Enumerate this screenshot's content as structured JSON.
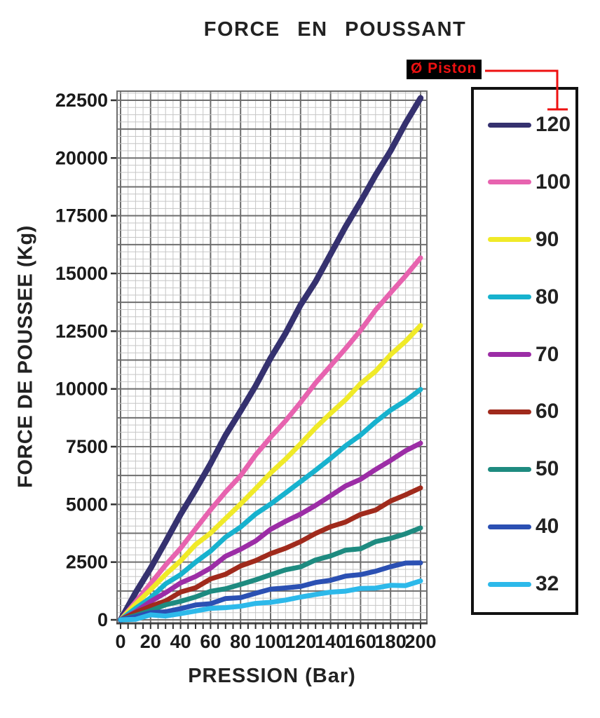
{
  "callout": {
    "label": "Ø Piston",
    "color": "#ee1111",
    "background": "#000000"
  },
  "colors": {
    "text": "#1a1a1a",
    "grid_minor": "#c6c6c6",
    "grid_major": "#6e6e6e",
    "axis": "#444444",
    "tick": "#333333",
    "legend_border": "#111111",
    "callout_red": "#ee1111"
  },
  "chart_data": {
    "type": "line",
    "title": "FORCE EN POUSSANT",
    "xlabel": "PRESSION (Bar)",
    "ylabel": "FORCE DE POUSSEE (Kg)",
    "xlim": [
      0,
      200
    ],
    "ylim": [
      0,
      22500
    ],
    "x_ticks": [
      0,
      20,
      40,
      60,
      80,
      100,
      120,
      140,
      160,
      180,
      200
    ],
    "x_minor_step_bar": 5,
    "y_ticks": [
      0,
      2500,
      5000,
      7500,
      10000,
      12500,
      15000,
      17500,
      20000,
      22500
    ],
    "grid": "on (fine graph paper, major every 4 minor cells)",
    "legend_title": "Ø Piston",
    "legend_position": "right-box",
    "categories": [
      0,
      20,
      40,
      60,
      80,
      100,
      120,
      140,
      160,
      180,
      200
    ],
    "series": [
      {
        "name": "120",
        "color": "#35316f",
        "width": 8.5,
        "values": [
          0,
          2260,
          4520,
          6790,
          9050,
          11310,
          13570,
          15830,
          18100,
          20360,
          22620
        ]
      },
      {
        "name": "100",
        "color": "#e763af",
        "width": 7,
        "values": [
          0,
          1570,
          3140,
          4710,
          6280,
          7850,
          9420,
          11000,
          12570,
          14140,
          15710
        ]
      },
      {
        "name": "90",
        "color": "#f0ea28",
        "width": 7,
        "values": [
          0,
          1270,
          2540,
          3820,
          5090,
          6360,
          7630,
          8910,
          10180,
          11450,
          12720
        ]
      },
      {
        "name": "80",
        "color": "#17b2ce",
        "width": 7,
        "values": [
          0,
          1010,
          2010,
          3020,
          4020,
          5030,
          6030,
          7040,
          8040,
          9050,
          10050
        ]
      },
      {
        "name": "70",
        "color": "#9c2da6",
        "width": 7,
        "values": [
          0,
          770,
          1540,
          2310,
          3080,
          3850,
          4620,
          5390,
          6160,
          6930,
          7700
        ]
      },
      {
        "name": "60",
        "color": "#a02a1c",
        "width": 7,
        "values": [
          0,
          570,
          1130,
          1700,
          2260,
          2830,
          3390,
          3960,
          4520,
          5090,
          5660
        ]
      },
      {
        "name": "50",
        "color": "#1e8b80",
        "width": 7,
        "values": [
          0,
          390,
          790,
          1180,
          1570,
          1960,
          2360,
          2750,
          3140,
          3530,
          3930
        ]
      },
      {
        "name": "40",
        "color": "#2b50b3",
        "width": 7,
        "values": [
          0,
          250,
          500,
          750,
          1010,
          1260,
          1510,
          1760,
          2010,
          2260,
          2510
        ]
      },
      {
        "name": "32",
        "color": "#2db9ea",
        "width": 7,
        "values": [
          0,
          160,
          320,
          480,
          640,
          800,
          970,
          1130,
          1290,
          1450,
          1610
        ]
      }
    ]
  }
}
